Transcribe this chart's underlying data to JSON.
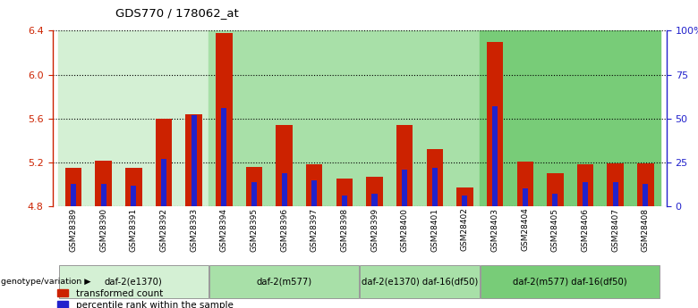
{
  "title": "GDS770 / 178062_at",
  "samples": [
    "GSM28389",
    "GSM28390",
    "GSM28391",
    "GSM28392",
    "GSM28393",
    "GSM28394",
    "GSM28395",
    "GSM28396",
    "GSM28397",
    "GSM28398",
    "GSM28399",
    "GSM28400",
    "GSM28401",
    "GSM28402",
    "GSM28403",
    "GSM28404",
    "GSM28405",
    "GSM28406",
    "GSM28407",
    "GSM28408"
  ],
  "red_values": [
    5.15,
    5.22,
    5.15,
    5.6,
    5.64,
    6.38,
    5.16,
    5.54,
    5.18,
    5.05,
    5.07,
    5.54,
    5.32,
    4.97,
    6.3,
    5.21,
    5.1,
    5.18,
    5.19,
    5.19
  ],
  "blue_percentiles": [
    13,
    13,
    12,
    27,
    52,
    56,
    14,
    19,
    15,
    6,
    7,
    21,
    22,
    6,
    57,
    10,
    7,
    14,
    14,
    13
  ],
  "y_min": 4.8,
  "y_max": 6.4,
  "y_ticks_red": [
    4.8,
    5.2,
    5.6,
    6.0,
    6.4
  ],
  "y_ticks_blue": [
    0,
    25,
    50,
    75,
    100
  ],
  "y_ticks_blue_labels": [
    "0",
    "25",
    "50",
    "75",
    "100%"
  ],
  "red_color": "#cc2200",
  "blue_color": "#2222cc",
  "bar_width": 0.55,
  "blue_bar_width": 0.18,
  "genotype_label": "genotype/variation",
  "legend_red": "transformed count",
  "legend_blue": "percentile rank within the sample",
  "axis_left_color": "#cc2200",
  "axis_right_color": "#2222cc",
  "groups": [
    {
      "label": "daf-2(e1370)",
      "start": 0,
      "end": 4,
      "color": "#d4f0d4"
    },
    {
      "label": "daf-2(m577)",
      "start": 5,
      "end": 9,
      "color": "#a8e0a8"
    },
    {
      "label": "daf-2(e1370) daf-16(df50)",
      "start": 10,
      "end": 13,
      "color": "#a8e0a8"
    },
    {
      "label": "daf-2(m577) daf-16(df50)",
      "start": 14,
      "end": 19,
      "color": "#78cc78"
    }
  ]
}
